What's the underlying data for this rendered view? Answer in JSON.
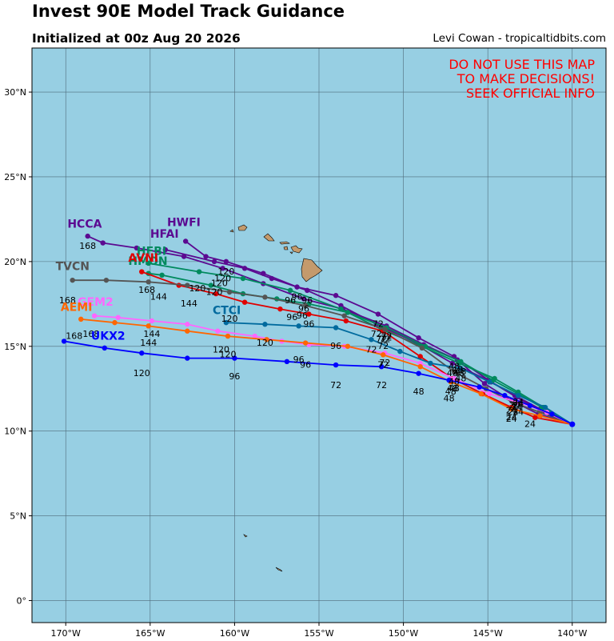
{
  "header": {
    "title": "Invest 90E Model Track Guidance",
    "subtitle": "Initialized at 00z Aug 20 2026",
    "credit": "Levi Cowan - tropicaltidbits.com"
  },
  "warning": [
    "DO NOT USE THIS MAP",
    "TO MAKE DECISIONS!",
    "SEEK OFFICIAL INFO"
  ],
  "colors": {
    "ocean": "#97cfe3",
    "land": "#c49a6c",
    "grid": "#4f6b7a",
    "warning": "#ff0000"
  },
  "axes": {
    "lon_range": [
      -172,
      -138
    ],
    "lat_range": [
      -1.3,
      32.6
    ],
    "x_ticks": [
      {
        "lon": -170,
        "label": "170°W"
      },
      {
        "lon": -165,
        "label": "165°W"
      },
      {
        "lon": -160,
        "label": "160°W"
      },
      {
        "lon": -155,
        "label": "155°W"
      },
      {
        "lon": -150,
        "label": "150°W"
      },
      {
        "lon": -145,
        "label": "145°W"
      },
      {
        "lon": -140,
        "label": "140°W"
      }
    ],
    "y_ticks": [
      {
        "lat": 30,
        "label": "30°N"
      },
      {
        "lat": 25,
        "label": "25°N"
      },
      {
        "lat": 20,
        "label": "20°N"
      },
      {
        "lat": 15,
        "label": "15°N"
      },
      {
        "lat": 10,
        "label": "10°N"
      },
      {
        "lat": 5,
        "label": "5°N"
      },
      {
        "lat": 0,
        "label": "0°"
      }
    ]
  },
  "chart_data": {
    "type": "map",
    "models": [
      {
        "name": "HCCA",
        "color": "#5b0a91",
        "points": [
          [
            -140.0,
            10.4
          ],
          [
            -142.0,
            11.0
          ],
          [
            -143.6,
            11.8
          ],
          [
            -145.2,
            12.8
          ],
          [
            -146.8,
            14.2
          ],
          [
            -148.8,
            15.1
          ],
          [
            -151.0,
            16.2
          ],
          [
            -153.6,
            17.2
          ],
          [
            -155.9,
            17.8
          ],
          [
            -158.3,
            18.7
          ],
          [
            -160.7,
            19.6
          ],
          [
            -163.0,
            20.3
          ],
          [
            -165.8,
            20.8
          ],
          [
            -167.8,
            21.1
          ],
          [
            -168.7,
            21.5
          ]
        ],
        "labels": [
          [
            -143.6,
            11.8,
            "24"
          ],
          [
            -146.8,
            14.2,
            "48"
          ],
          [
            -151.0,
            16.2,
            "72"
          ],
          [
            -155.9,
            17.8,
            "96"
          ],
          [
            -160.7,
            19.6,
            "120"
          ],
          [
            -168.7,
            21.5,
            "168"
          ]
        ],
        "name_pos": [
          -169.9,
          22.0
        ]
      },
      {
        "name": "HWFI",
        "color": "#5b0a91",
        "points": [
          [
            -140.0,
            10.4
          ],
          [
            -141.9,
            11.2
          ],
          [
            -143.3,
            12.0
          ],
          [
            -144.8,
            12.9
          ],
          [
            -147.0,
            14.4
          ],
          [
            -149.1,
            15.5
          ],
          [
            -151.5,
            16.9
          ],
          [
            -154.0,
            18.0
          ],
          [
            -156.3,
            18.5
          ],
          [
            -158.3,
            19.3
          ],
          [
            -160.5,
            20.0
          ],
          [
            -161.7,
            20.3
          ],
          [
            -162.9,
            21.2
          ]
        ],
        "labels": [
          [
            -143.3,
            12.0,
            "24"
          ],
          [
            -147.0,
            14.4,
            "48"
          ],
          [
            -151.5,
            16.9,
            "72"
          ],
          [
            -156.3,
            18.5,
            "96"
          ],
          [
            -160.5,
            20.0,
            "120"
          ]
        ],
        "name_pos": [
          -164.0,
          22.1
        ]
      },
      {
        "name": "HFAI",
        "color": "#5b0a91",
        "points": [
          [
            -140.0,
            10.4
          ],
          [
            -141.9,
            11.3
          ],
          [
            -143.4,
            12.1
          ],
          [
            -145.0,
            13.0
          ],
          [
            -147.1,
            14.0
          ],
          [
            -149.2,
            15.2
          ],
          [
            -151.6,
            16.3
          ],
          [
            -153.7,
            17.4
          ],
          [
            -155.7,
            18.3
          ],
          [
            -157.8,
            19.0
          ],
          [
            -159.4,
            19.6
          ],
          [
            -161.2,
            20.0
          ],
          [
            -164.1,
            20.7
          ]
        ],
        "labels": [
          [
            -143.4,
            12.1,
            "24"
          ],
          [
            -147.1,
            14.0,
            "48"
          ],
          [
            -151.6,
            16.3,
            "72"
          ],
          [
            -155.7,
            18.3,
            "96"
          ],
          [
            -160.9,
            19.3,
            "120"
          ]
        ],
        "name_pos": [
          -165.0,
          21.4
        ]
      },
      {
        "name": "HMON",
        "color": "#008a5e",
        "points": [
          [
            -140.0,
            10.4
          ],
          [
            -141.8,
            11.4
          ],
          [
            -143.2,
            12.2
          ],
          [
            -144.7,
            13.0
          ],
          [
            -146.6,
            14.1
          ],
          [
            -148.7,
            15.0
          ],
          [
            -151.0,
            16.1
          ],
          [
            -153.3,
            17.0
          ],
          [
            -155.6,
            17.5
          ],
          [
            -157.5,
            17.8
          ],
          [
            -159.5,
            18.1
          ],
          [
            -161.4,
            18.6
          ],
          [
            -164.3,
            19.2
          ],
          [
            -165.1,
            19.3
          ]
        ],
        "labels": [
          [
            -143.2,
            12.2,
            "24"
          ],
          [
            -146.6,
            14.1,
            "48"
          ],
          [
            -151.0,
            16.1,
            "72"
          ],
          [
            -156.0,
            17.4,
            "96"
          ],
          [
            -162.2,
            19.0,
            "120"
          ]
        ],
        "name_pos": [
          -166.3,
          19.8
        ]
      },
      {
        "name": "HFBI",
        "color": "#008a5e",
        "points": [
          [
            -140.0,
            10.4
          ],
          [
            -141.7,
            11.4
          ],
          [
            -143.2,
            12.3
          ],
          [
            -144.6,
            13.1
          ],
          [
            -146.7,
            14.0
          ],
          [
            -148.9,
            15.0
          ],
          [
            -151.3,
            16.0
          ],
          [
            -153.7,
            17.2
          ],
          [
            -156.7,
            18.3
          ],
          [
            -159.5,
            19.0
          ],
          [
            -162.1,
            19.4
          ],
          [
            -165.1,
            19.9
          ]
        ],
        "labels": [
          [
            -143.2,
            12.3,
            "24"
          ],
          [
            -146.7,
            14.0,
            "48"
          ],
          [
            -151.3,
            16.0,
            "72"
          ],
          [
            -156.7,
            18.3,
            "96"
          ],
          [
            -161.2,
            18.8,
            "120"
          ]
        ],
        "name_pos": [
          -165.8,
          20.4
        ]
      },
      {
        "name": "AVNI",
        "color": "#e00000",
        "points": [
          [
            -140.0,
            10.4
          ],
          [
            -142.2,
            10.8
          ],
          [
            -143.6,
            11.4
          ],
          [
            -145.3,
            12.2
          ],
          [
            -147.1,
            13.1
          ],
          [
            -149.0,
            14.4
          ],
          [
            -151.2,
            15.9
          ],
          [
            -153.4,
            16.5
          ],
          [
            -155.6,
            16.9
          ],
          [
            -157.3,
            17.2
          ],
          [
            -159.4,
            17.6
          ],
          [
            -161.1,
            18.1
          ],
          [
            -163.3,
            18.6
          ],
          [
            -165.5,
            19.4
          ]
        ],
        "labels": [
          [
            -143.6,
            11.4,
            "24"
          ],
          [
            -147.1,
            13.1,
            "48"
          ],
          [
            -151.2,
            15.6,
            "72"
          ],
          [
            -155.6,
            16.9,
            "96"
          ],
          [
            -160.3,
            17.2,
            "120"
          ],
          [
            -162.7,
            18.1,
            "144"
          ]
        ],
        "name_pos": [
          -166.3,
          20.0
        ]
      },
      {
        "name": "TVCN",
        "color": "#555555",
        "points": [
          [
            -140.0,
            10.4
          ],
          [
            -141.9,
            11.1
          ],
          [
            -143.5,
            11.7
          ],
          [
            -145.1,
            12.5
          ],
          [
            -147.0,
            13.5
          ],
          [
            -148.9,
            14.9
          ],
          [
            -151.1,
            16.0
          ],
          [
            -153.5,
            16.8
          ],
          [
            -155.8,
            17.4
          ],
          [
            -158.2,
            17.9
          ],
          [
            -160.3,
            18.2
          ],
          [
            -162.8,
            18.6
          ],
          [
            -165.1,
            18.8
          ],
          [
            -167.6,
            18.9
          ],
          [
            -169.6,
            18.9
          ]
        ],
        "labels": [
          [
            -143.5,
            11.7,
            "24"
          ],
          [
            -147.0,
            13.5,
            "48"
          ],
          [
            -151.1,
            16.0,
            "72"
          ],
          [
            -156.6,
            17.3,
            "96"
          ],
          [
            -164.5,
            18.5,
            "144"
          ],
          [
            -165.2,
            18.9,
            "168"
          ],
          [
            -169.9,
            18.3,
            "168"
          ]
        ],
        "name_pos": [
          -170.6,
          19.5
        ]
      },
      {
        "name": "CTCI",
        "color": "#006a9e",
        "points": [
          [
            -140.0,
            10.4
          ],
          [
            -141.6,
            11.4
          ],
          [
            -143.2,
            12.1
          ],
          [
            -144.9,
            12.9
          ],
          [
            -146.6,
            13.7
          ],
          [
            -148.4,
            14.0
          ],
          [
            -150.2,
            14.7
          ],
          [
            -151.9,
            15.4
          ],
          [
            -154.0,
            16.1
          ],
          [
            -156.2,
            16.2
          ],
          [
            -158.2,
            16.3
          ],
          [
            -160.5,
            16.4
          ]
        ],
        "labels": [
          [
            -143.2,
            12.1,
            "24"
          ],
          [
            -146.6,
            13.7,
            "48"
          ],
          [
            -151.9,
            15.4,
            "72"
          ],
          [
            -154.0,
            15.6,
            "96"
          ],
          [
            -158.2,
            15.8,
            "120"
          ]
        ],
        "name_pos": [
          -161.3,
          16.9
        ]
      },
      {
        "name": "GEM2",
        "color": "#ff66ff",
        "points": [
          [
            -140.0,
            10.4
          ],
          [
            -141.5,
            11.1
          ],
          [
            -143.2,
            11.7
          ],
          [
            -144.9,
            12.2
          ],
          [
            -147.0,
            13.1
          ],
          [
            -149.0,
            14.0
          ],
          [
            -151.1,
            14.6
          ],
          [
            -153.5,
            15.0
          ],
          [
            -155.6,
            15.1
          ],
          [
            -157.2,
            15.3
          ],
          [
            -158.8,
            15.6
          ],
          [
            -161.0,
            15.9
          ],
          [
            -162.8,
            16.3
          ],
          [
            -164.9,
            16.5
          ],
          [
            -166.9,
            16.7
          ],
          [
            -168.3,
            16.8
          ]
        ],
        "labels": [
          [
            -143.2,
            11.7,
            "24"
          ],
          [
            -147.0,
            13.1,
            "48"
          ],
          [
            -151.1,
            14.6,
            "72"
          ],
          [
            -156.2,
            14.8,
            "96"
          ],
          [
            -160.8,
            15.4,
            "120"
          ],
          [
            -164.9,
            16.3,
            "144"
          ],
          [
            -168.5,
            16.3,
            "168"
          ]
        ],
        "name_pos": [
          -169.3,
          17.4
        ]
      },
      {
        "name": "AEMI",
        "color": "#ff6600",
        "points": [
          [
            -140.0,
            10.4
          ],
          [
            -141.9,
            10.9
          ],
          [
            -143.6,
            11.3
          ],
          [
            -145.4,
            12.2
          ],
          [
            -147.2,
            12.9
          ],
          [
            -149.0,
            13.8
          ],
          [
            -151.2,
            14.5
          ],
          [
            -153.3,
            15.0
          ],
          [
            -155.8,
            15.2
          ],
          [
            -158.1,
            15.4
          ],
          [
            -160.4,
            15.6
          ],
          [
            -162.8,
            15.9
          ],
          [
            -165.1,
            16.2
          ],
          [
            -167.1,
            16.4
          ],
          [
            -169.1,
            16.6
          ]
        ],
        "labels": [
          [
            -143.6,
            11.3,
            "24"
          ],
          [
            -147.2,
            12.9,
            "48"
          ],
          [
            -151.2,
            14.5,
            "72"
          ],
          [
            -155.8,
            14.5,
            "96"
          ],
          [
            -160.4,
            15.1,
            "120"
          ],
          [
            -165.1,
            15.8,
            "144"
          ],
          [
            -169.5,
            16.2,
            "168"
          ]
        ],
        "name_pos": [
          -170.3,
          17.1
        ]
      },
      {
        "name": "UKX2",
        "color": "#0000ff",
        "points": [
          [
            -140.0,
            10.4
          ],
          [
            -141.2,
            11.0
          ],
          [
            -142.5,
            11.5
          ],
          [
            -144.0,
            12.1
          ],
          [
            -145.5,
            12.6
          ],
          [
            -147.3,
            13.0
          ],
          [
            -149.1,
            13.4
          ],
          [
            -151.3,
            13.8
          ],
          [
            -154.0,
            13.9
          ],
          [
            -156.9,
            14.1
          ],
          [
            -160.0,
            14.3
          ],
          [
            -162.8,
            14.3
          ],
          [
            -165.5,
            14.6
          ],
          [
            -167.7,
            14.9
          ],
          [
            -170.1,
            15.3
          ]
        ],
        "labels": [
          [
            -142.5,
            11.0,
            "24"
          ],
          [
            -147.3,
            12.5,
            "48"
          ],
          [
            -149.1,
            12.9,
            "48"
          ],
          [
            -151.3,
            13.3,
            "72"
          ],
          [
            -154.0,
            13.3,
            "72"
          ],
          [
            -160.0,
            13.8,
            "96"
          ],
          [
            -165.5,
            14.0,
            "120"
          ]
        ],
        "name_pos": [
          -168.5,
          15.4
        ]
      }
    ]
  }
}
